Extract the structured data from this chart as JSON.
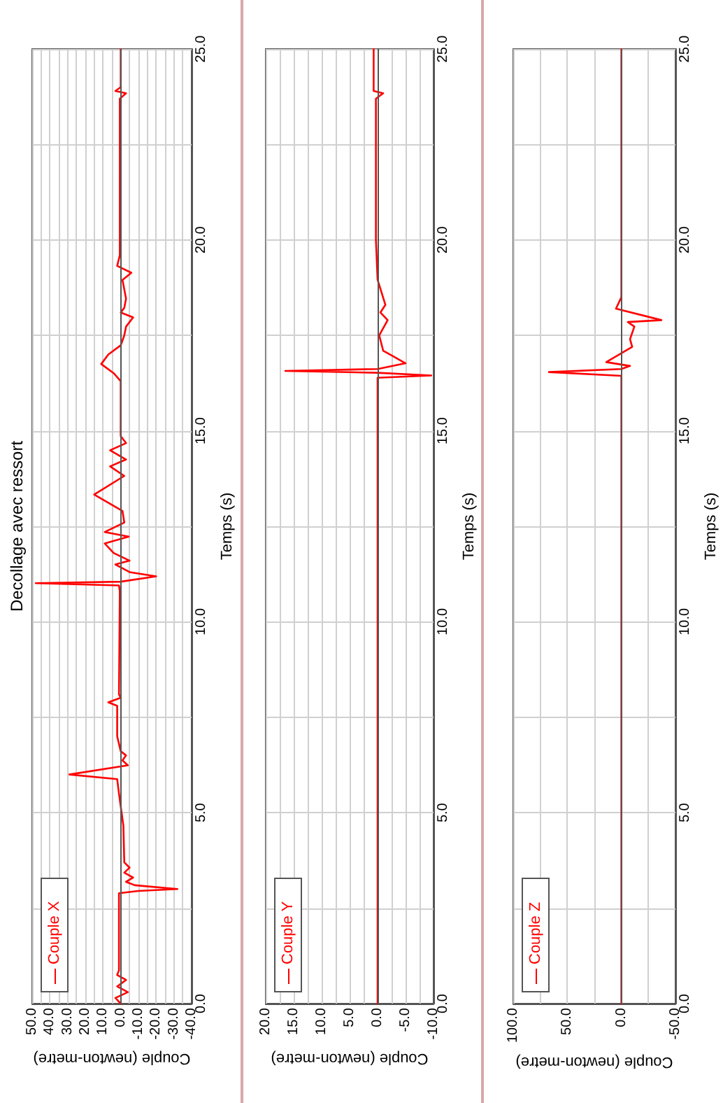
{
  "chart_data": [
    {
      "type": "line",
      "title": "Decollage avec ressort",
      "xlabel": "Couple (newton-metre)",
      "ylabel": "Temps (s)",
      "xlim": [
        50,
        -40
      ],
      "xticks": [
        {
          "value": 50,
          "label": "50.0"
        },
        {
          "value": 45,
          "label": null
        },
        {
          "value": 40,
          "label": "40.0"
        },
        {
          "value": 35,
          "label": null
        },
        {
          "value": 30,
          "label": "30.0"
        },
        {
          "value": 25,
          "label": null
        },
        {
          "value": 20,
          "label": "20.0"
        },
        {
          "value": 15,
          "label": null
        },
        {
          "value": 10,
          "label": "10.0"
        },
        {
          "value": 5,
          "label": null
        },
        {
          "value": 0,
          "label": "0.0"
        },
        {
          "value": -5,
          "label": null
        },
        {
          "value": -10,
          "label": "-10.0"
        },
        {
          "value": -15,
          "label": null
        },
        {
          "value": -20,
          "label": "-20.0"
        },
        {
          "value": -25,
          "label": null
        },
        {
          "value": -30,
          "label": "-30.0"
        },
        {
          "value": -35,
          "label": null
        },
        {
          "value": -40,
          "label": "-40.0"
        }
      ],
      "ylim": [
        0,
        25
      ],
      "yticks": [
        {
          "value": 0,
          "label": "0.0"
        },
        {
          "value": 2.5,
          "label": null
        },
        {
          "value": 5,
          "label": "5.0"
        },
        {
          "value": 7.5,
          "label": null
        },
        {
          "value": 10,
          "label": "10.0"
        },
        {
          "value": 12.5,
          "label": null
        },
        {
          "value": 15,
          "label": "15.0"
        },
        {
          "value": 17.5,
          "label": null
        },
        {
          "value": 20,
          "label": "20.0"
        },
        {
          "value": 22.5,
          "label": null
        },
        {
          "value": 25,
          "label": "25.0"
        }
      ],
      "grid": true,
      "legend": "bottom left",
      "marker": "none",
      "ref_lines": [
        {
          "axis": "x",
          "value": 0,
          "color": "#555555"
        }
      ],
      "series": [
        {
          "name": "Couple X",
          "color": "#ff0000",
          "values": [
            0,
            0.15,
            0.3,
            0.45,
            0.62,
            0.75,
            0.87,
            1.5,
            2.89,
            2.95,
            3.0,
            3.1,
            3.19,
            3.3,
            3.43,
            3.56,
            3.7,
            4.66,
            5.5,
            5.88,
            6.0,
            6.24,
            6.37,
            6.5,
            6.61,
            7.0,
            7.8,
            7.89,
            8.01,
            8.1,
            10.8,
            10.95,
            11.01,
            11.05,
            11.19,
            11.3,
            11.5,
            11.6,
            11.8,
            12.05,
            12.23,
            12.35,
            12.6,
            12.9,
            13.33,
            13.82,
            14.07,
            14.25,
            14.49,
            14.68,
            14.86,
            16.3,
            16.51,
            16.75,
            17.0,
            17.24,
            17.5,
            17.73,
            17.97,
            18.1,
            18.22,
            18.46,
            18.95,
            19.14,
            19.32,
            19.6,
            23.7,
            23.84,
            23.9,
            24.0,
            25
          ],
          "x": [
            0,
            3,
            -4,
            2,
            -3,
            2,
            1,
            1,
            1,
            -10,
            -32,
            -8,
            -3,
            -7,
            -2,
            -5,
            -2,
            -1.5,
            1,
            2,
            29,
            -4,
            -1,
            -3,
            0,
            2,
            2,
            7,
            0,
            1,
            0.5,
            1,
            48,
            0,
            -20,
            -5,
            3,
            -5,
            4,
            9,
            -4.5,
            9,
            -2,
            -1,
            15,
            -2,
            6,
            -3,
            6,
            -3,
            0,
            0,
            4,
            11,
            7,
            0,
            -2,
            -3,
            -7,
            0,
            -2,
            -3,
            -1,
            -6,
            2,
            0.5,
            0.5,
            -3,
            3,
            0,
            0
          ]
        }
      ]
    },
    {
      "type": "line",
      "xlabel": "Couple (newton-metre)",
      "ylabel": "Temps (s)",
      "xlim": [
        20,
        -10
      ],
      "xticks": [
        {
          "value": 20,
          "label": "20.0"
        },
        {
          "value": 17.5,
          "label": null
        },
        {
          "value": 15,
          "label": "15.0"
        },
        {
          "value": 12.5,
          "label": null
        },
        {
          "value": 10,
          "label": "10.0"
        },
        {
          "value": 7.5,
          "label": null
        },
        {
          "value": 5,
          "label": "5.0"
        },
        {
          "value": 2.5,
          "label": null
        },
        {
          "value": 0,
          "label": "0.0"
        },
        {
          "value": -2.5,
          "label": null
        },
        {
          "value": -5,
          "label": "-5.0"
        },
        {
          "value": -7.5,
          "label": null
        },
        {
          "value": -10,
          "label": "-10.0"
        }
      ],
      "ylim": [
        0,
        25
      ],
      "yticks": [
        {
          "value": 0,
          "label": "0.0"
        },
        {
          "value": 2.5,
          "label": null
        },
        {
          "value": 5,
          "label": "5.0"
        },
        {
          "value": 7.5,
          "label": null
        },
        {
          "value": 10,
          "label": "10.0"
        },
        {
          "value": 12.5,
          "label": null
        },
        {
          "value": 15,
          "label": "15.0"
        },
        {
          "value": 17.5,
          "label": null
        },
        {
          "value": 20,
          "label": "20.0"
        },
        {
          "value": 22.5,
          "label": null
        },
        {
          "value": 25,
          "label": "25.0"
        }
      ],
      "grid": true,
      "legend": "bottom left",
      "marker": "none",
      "ref_lines": [
        {
          "axis": "x",
          "value": 0,
          "color": "#555555"
        }
      ],
      "series": [
        {
          "name": "Couple Y",
          "color": "#ff0000",
          "values": [
            0,
            16.39,
            16.45,
            16.52,
            16.57,
            16.62,
            16.77,
            17.1,
            17.5,
            17.9,
            18.1,
            18.3,
            18.96,
            20,
            23.7,
            23.84,
            23.9,
            25
          ],
          "x": [
            0,
            0,
            -9.6,
            0,
            16.5,
            0,
            -5,
            -1,
            -0.3,
            -1.8,
            -0.5,
            -1.4,
            0,
            0.3,
            0.3,
            -1,
            0.7,
            0.7
          ]
        }
      ]
    },
    {
      "type": "line",
      "xlabel": "Couple (newton-metre)",
      "ylabel": "Temps (s)",
      "xlim": [
        100,
        -50
      ],
      "xticks": [
        {
          "value": 100,
          "label": "100.0"
        },
        {
          "value": 75,
          "label": null
        },
        {
          "value": 50,
          "label": "50.0"
        },
        {
          "value": 25,
          "label": null
        },
        {
          "value": 0,
          "label": "0.0"
        },
        {
          "value": -25,
          "label": null
        },
        {
          "value": -50,
          "label": "-50.0"
        }
      ],
      "ylim": [
        0,
        25
      ],
      "yticks": [
        {
          "value": 0,
          "label": "0.0"
        },
        {
          "value": 2.5,
          "label": null
        },
        {
          "value": 5,
          "label": "5.0"
        },
        {
          "value": 7.5,
          "label": null
        },
        {
          "value": 10,
          "label": "10.0"
        },
        {
          "value": 12.5,
          "label": null
        },
        {
          "value": 15,
          "label": "15.0"
        },
        {
          "value": 17.5,
          "label": null
        },
        {
          "value": 20,
          "label": "20.0"
        },
        {
          "value": 22.5,
          "label": null
        },
        {
          "value": 25,
          "label": "25.0"
        }
      ],
      "grid": true,
      "legend": "bottom left",
      "marker": "none",
      "ref_lines": [
        {
          "axis": "x",
          "value": 0,
          "color": "#555555"
        }
      ],
      "series": [
        {
          "name": "Couple Z",
          "color": "#ff0000",
          "values": [
            0,
            16.44,
            16.54,
            16.62,
            16.7,
            16.8,
            17.2,
            17.4,
            17.73,
            17.85,
            17.9,
            18.2,
            18.5,
            25
          ],
          "x": [
            0,
            0,
            67,
            0,
            -8,
            14,
            -10,
            -8,
            -12,
            -6,
            -37,
            5,
            0,
            0
          ]
        }
      ]
    }
  ]
}
